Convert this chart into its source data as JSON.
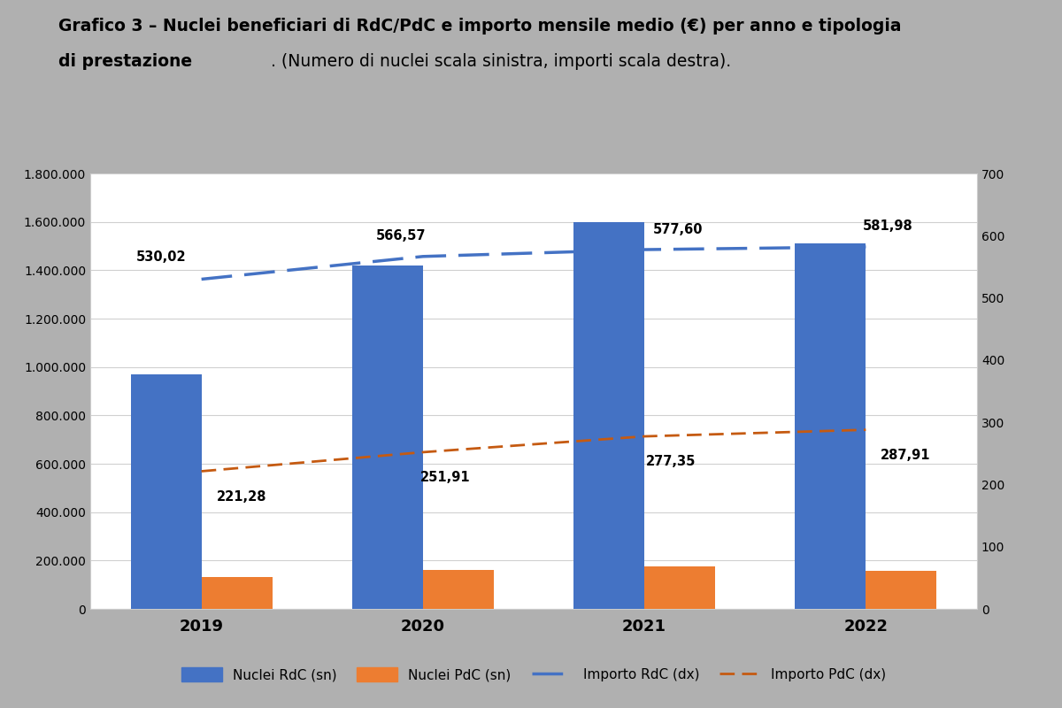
{
  "years": [
    "2019",
    "2020",
    "2021",
    "2022"
  ],
  "nuclei_rdc": [
    970000,
    1420000,
    1600000,
    1510000
  ],
  "nuclei_pdc": [
    130000,
    160000,
    175000,
    158000
  ],
  "importo_rdc": [
    530.02,
    566.57,
    577.6,
    581.98
  ],
  "importo_pdc": [
    221.28,
    251.91,
    277.35,
    287.91
  ],
  "bar_color_rdc": "#4472C4",
  "bar_color_pdc": "#ED7D31",
  "line_color_rdc": "#4472C4",
  "line_color_pdc": "#C55A11",
  "rdc_label_strs": [
    "530,02",
    "566,57",
    "577,60",
    "581,98"
  ],
  "pdc_label_strs": [
    "221,28",
    "251,91",
    "277,35",
    "287,91"
  ],
  "title_line1_bold": "Grafico 3 – Nuclei beneficiari di RdC/PdC e importo mensile medio (€) per anno e tipologia",
  "title_line2_bold": "di prestazione",
  "title_line2_normal": ". (Numero di nuclei scala sinistra, importi scala destra).",
  "ylim_left": [
    0,
    1800000
  ],
  "ylim_right": [
    0,
    700
  ],
  "yticks_left": [
    0,
    200000,
    400000,
    600000,
    800000,
    1000000,
    1200000,
    1400000,
    1600000,
    1800000
  ],
  "yticks_right": [
    0,
    100,
    200,
    300,
    400,
    500,
    600,
    700
  ],
  "background_color": "#b0b0b0",
  "header_color": "#f0f0f0",
  "plot_background": "#ffffff"
}
